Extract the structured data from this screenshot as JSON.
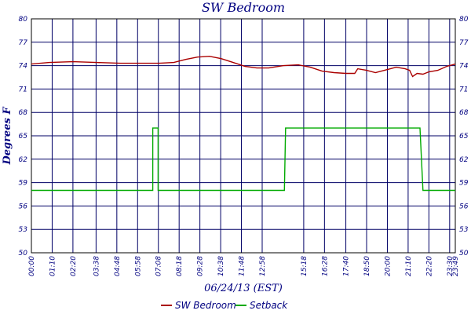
{
  "chart_data": {
    "type": "line",
    "title": "SW Bedroom",
    "xlabel": "06/24/13 (EST)",
    "ylabel": "Degrees F",
    "ylim": [
      50,
      80
    ],
    "y_ticks": [
      "50",
      "53",
      "56",
      "59",
      "62",
      "65",
      "68",
      "71",
      "74",
      "77",
      "80"
    ],
    "x_range_minutes": [
      0,
      1429
    ],
    "x_ticks": [
      {
        "label": "00:00",
        "minute": 0
      },
      {
        "label": "01:10",
        "minute": 70
      },
      {
        "label": "02:20",
        "minute": 140
      },
      {
        "label": "03:38",
        "minute": 218
      },
      {
        "label": "04:48",
        "minute": 288
      },
      {
        "label": "05:58",
        "minute": 358
      },
      {
        "label": "07:08",
        "minute": 428
      },
      {
        "label": "08:18",
        "minute": 498
      },
      {
        "label": "09:28",
        "minute": 568
      },
      {
        "label": "10:38",
        "minute": 638
      },
      {
        "label": "11:48",
        "minute": 708
      },
      {
        "label": "12:58",
        "minute": 778
      },
      {
        "label": "15:18",
        "minute": 918
      },
      {
        "label": "16:28",
        "minute": 988
      },
      {
        "label": "17:40",
        "minute": 1060
      },
      {
        "label": "18:50",
        "minute": 1130
      },
      {
        "label": "20:00",
        "minute": 1200
      },
      {
        "label": "21:10",
        "minute": 1270
      },
      {
        "label": "22:20",
        "minute": 1340
      },
      {
        "label": "23:30",
        "minute": 1410
      },
      {
        "label": "23:49",
        "minute": 1429
      }
    ],
    "grid": true,
    "legend_position": "bottom",
    "series": [
      {
        "name": "SW Bedroom",
        "color": "#aa0000",
        "points": [
          [
            0,
            74.2
          ],
          [
            60,
            74.4
          ],
          [
            140,
            74.5
          ],
          [
            220,
            74.4
          ],
          [
            300,
            74.3
          ],
          [
            380,
            74.3
          ],
          [
            430,
            74.3
          ],
          [
            480,
            74.4
          ],
          [
            520,
            74.8
          ],
          [
            560,
            75.1
          ],
          [
            600,
            75.2
          ],
          [
            640,
            74.9
          ],
          [
            680,
            74.4
          ],
          [
            720,
            73.9
          ],
          [
            760,
            73.7
          ],
          [
            800,
            73.7
          ],
          [
            850,
            74.0
          ],
          [
            900,
            74.1
          ],
          [
            940,
            73.8
          ],
          [
            980,
            73.3
          ],
          [
            1020,
            73.1
          ],
          [
            1060,
            73.0
          ],
          [
            1090,
            73.0
          ],
          [
            1100,
            73.6
          ],
          [
            1130,
            73.4
          ],
          [
            1160,
            73.1
          ],
          [
            1200,
            73.5
          ],
          [
            1230,
            73.8
          ],
          [
            1260,
            73.6
          ],
          [
            1275,
            73.4
          ],
          [
            1285,
            72.6
          ],
          [
            1300,
            73.0
          ],
          [
            1320,
            72.9
          ],
          [
            1340,
            73.2
          ],
          [
            1370,
            73.4
          ],
          [
            1400,
            73.9
          ],
          [
            1429,
            74.2
          ]
        ]
      },
      {
        "name": "Setback",
        "color": "#00aa00",
        "points": [
          [
            0,
            58
          ],
          [
            409,
            58
          ],
          [
            409,
            66
          ],
          [
            427,
            66
          ],
          [
            427,
            58
          ],
          [
            853,
            58
          ],
          [
            857,
            66
          ],
          [
            1310,
            66
          ],
          [
            1320,
            58
          ],
          [
            1429,
            58
          ]
        ]
      }
    ]
  }
}
